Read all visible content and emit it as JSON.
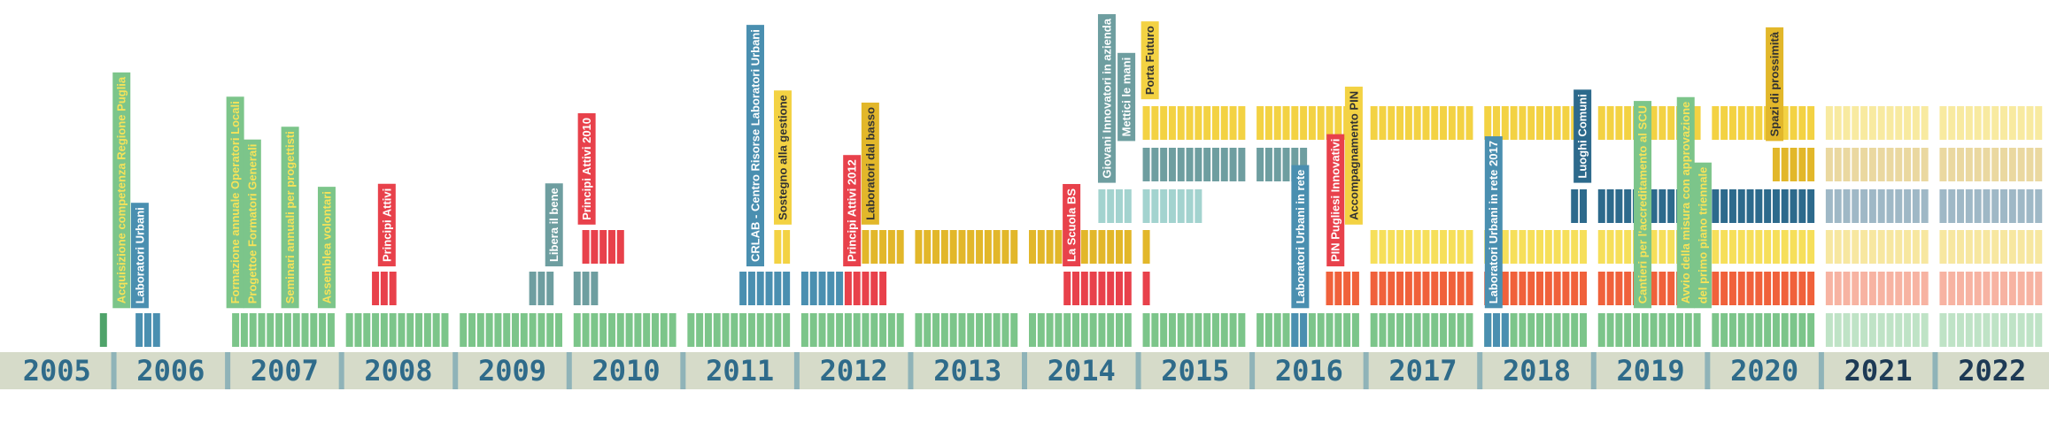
{
  "years": [
    "2005",
    "2006",
    "2007",
    "2008",
    "2009",
    "2010",
    "2011",
    "2012",
    "2013",
    "2014",
    "2015",
    "2016",
    "2017",
    "2018",
    "2019",
    "2020",
    "2021",
    "2022"
  ],
  "labels": [
    {
      "text": "Acquisizione competenza Regione Puglia"
    },
    {
      "text": "Laboratori Urbani"
    },
    {
      "text": "Formazione annuale Operatori Locali"
    },
    {
      "text": "Progettoe Formatori Generali"
    },
    {
      "text": "Seminari annuali per progettisti"
    },
    {
      "text": "Assemblea volontari"
    },
    {
      "text": "Principi Attivi"
    },
    {
      "text": "Libera il bene"
    },
    {
      "text": "Principi Attivi 2010"
    },
    {
      "text": "CRLAB - Centro Risorse Laboratori Urbani"
    },
    {
      "text": "Sostegno alla gestione"
    },
    {
      "text": "Principi Attivi 2012"
    },
    {
      "text": "Laboratori dal basso"
    },
    {
      "text": "La Scuola BS"
    },
    {
      "text": "Giovani Innovatori in azienda"
    },
    {
      "text": "Mettici le mani"
    },
    {
      "text": "Porta Futuro"
    },
    {
      "text": "Laboratori Urbani in rete"
    },
    {
      "text": "PIN Pugliesi Innovativi"
    },
    {
      "text": "Accompagnamento PIN"
    },
    {
      "text": "Laboratori Urbani in rete 2017"
    },
    {
      "text": "Luoghi Comuni"
    },
    {
      "text": "Cantieri per l'accreditamento al SCU"
    },
    {
      "text": "Avvio della misura con approvazione"
    },
    {
      "text": "del primo piano triennale"
    },
    {
      "text": "Spazi di prossimità"
    }
  ]
}
